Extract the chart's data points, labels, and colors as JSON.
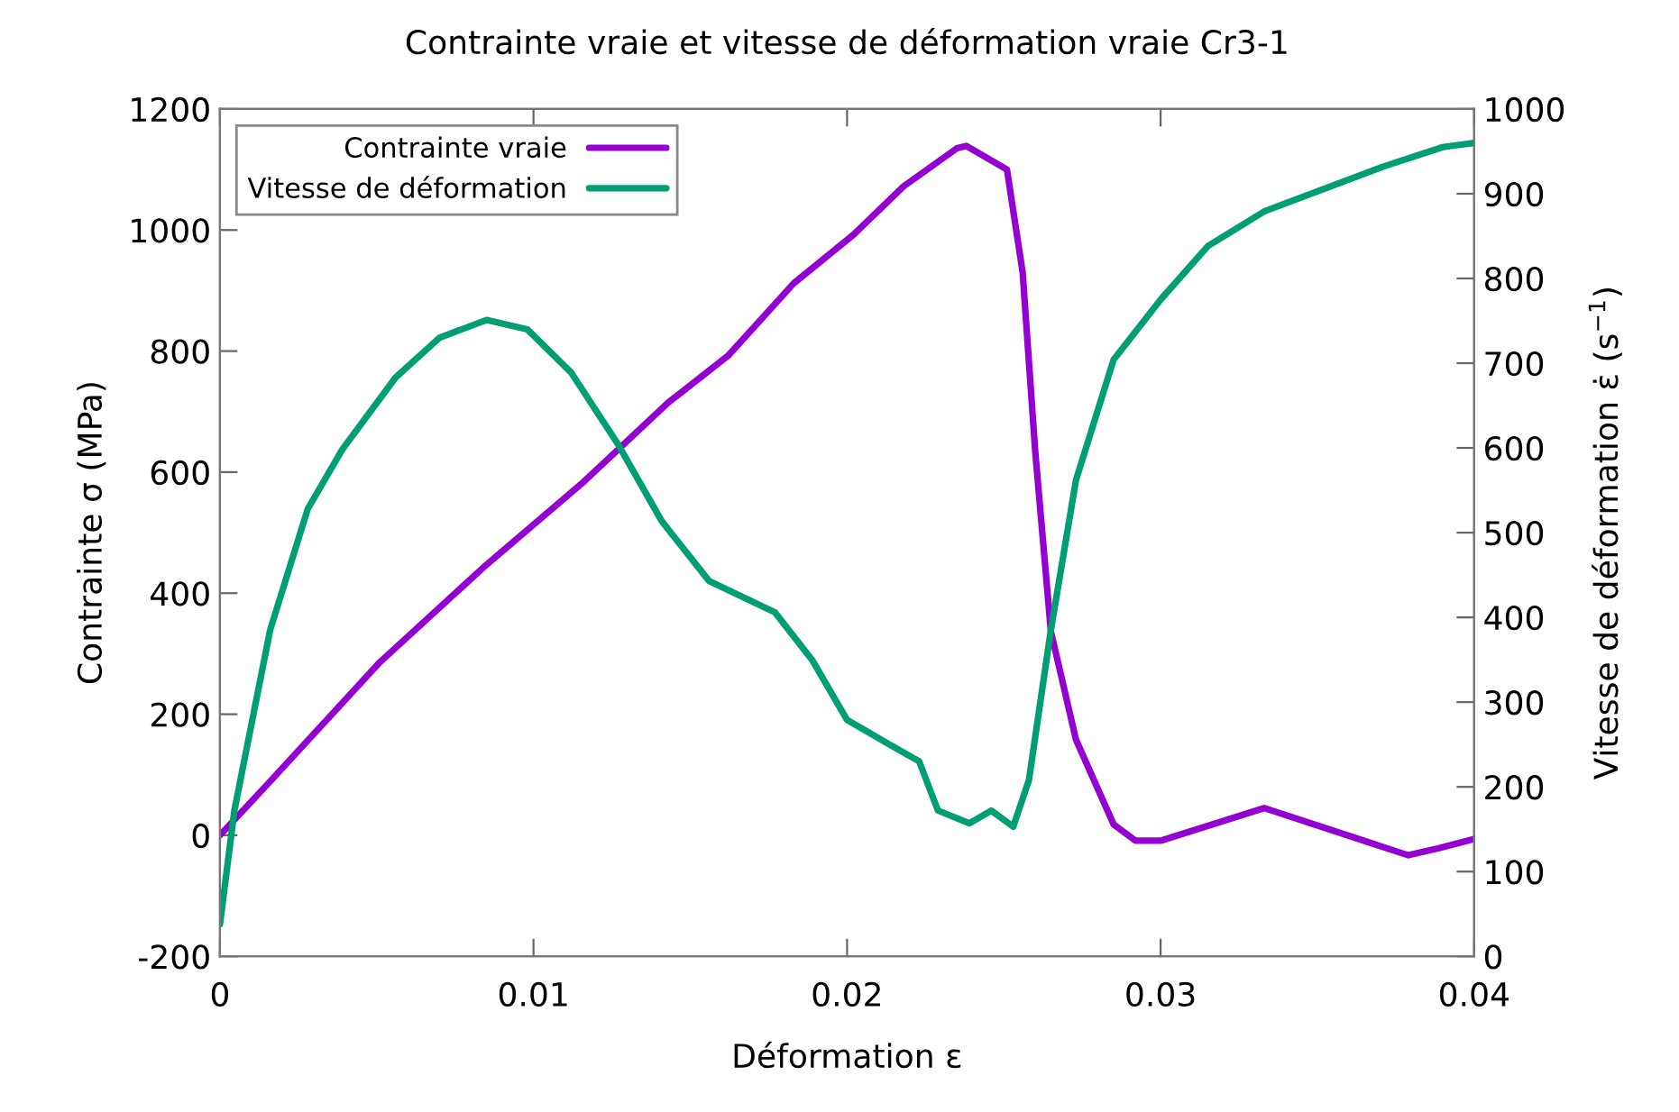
{
  "chart_data": {
    "type": "line",
    "title": "Contrainte vraie et vitesse de déformation vraie Cr3-1",
    "xlabel": "Déformation ε",
    "ylabel": "Contrainte σ (MPa)",
    "y2label": "Vitesse de déformation ε̇ (s$^{−1}$)",
    "xlim": [
      0,
      0.04
    ],
    "xticks": [
      0,
      0.01,
      0.02,
      0.03,
      0.04
    ],
    "ylim": [
      -200,
      1200
    ],
    "yticks": [
      -200,
      0,
      200,
      400,
      600,
      800,
      1000,
      1200
    ],
    "y2lim": [
      0,
      1000
    ],
    "y2ticks": [
      0,
      100,
      200,
      300,
      400,
      500,
      600,
      700,
      800,
      900,
      1000
    ],
    "grid": false,
    "legend": "top left",
    "line_style": "solid",
    "marker": "none",
    "series": [
      {
        "name": "Contrainte vraie",
        "color": "#9400d3",
        "x": [
          0,
          0.0016,
          0.0051,
          0.0085,
          0.0116,
          0.0143,
          0.0162,
          0.0183,
          0.0202,
          0.0218,
          0.0235,
          0.0238,
          0.0251,
          0.0256,
          0.026,
          0.0265,
          0.0273,
          0.0285,
          0.0292,
          0.03,
          0.0333,
          0.0379,
          0.0389,
          0.04
        ],
        "values": [
          0,
          89,
          286,
          447,
          584,
          715,
          792,
          912,
          992,
          1072,
          1135,
          1139,
          1100,
          930,
          635,
          337,
          158,
          18,
          -9,
          -9,
          45,
          -33,
          -21,
          -6
        ]
      },
      {
        "name": "Vitesse de déformation",
        "color": "#009e73",
        "axis": "y2",
        "x": [
          0,
          0.00046,
          0.0016,
          0.0028,
          0.0039,
          0.0056,
          0.007,
          0.0085,
          0.0098,
          0.0112,
          0.0127,
          0.0141,
          0.0156,
          0.0177,
          0.0189,
          0.02,
          0.0213,
          0.0223,
          0.0229,
          0.0239,
          0.0246,
          0.0253,
          0.0258,
          0.0265,
          0.0273,
          0.0285,
          0.03,
          0.0315,
          0.0333,
          0.0371,
          0.039,
          0.04
        ],
        "values": [
          38,
          172,
          385,
          528,
          598,
          683,
          730,
          751,
          740,
          689,
          604,
          513,
          443,
          406,
          349,
          279,
          251,
          230,
          172,
          157,
          172,
          153,
          208,
          385,
          562,
          704,
          775,
          838,
          879,
          932,
          955,
          960
        ]
      }
    ]
  }
}
